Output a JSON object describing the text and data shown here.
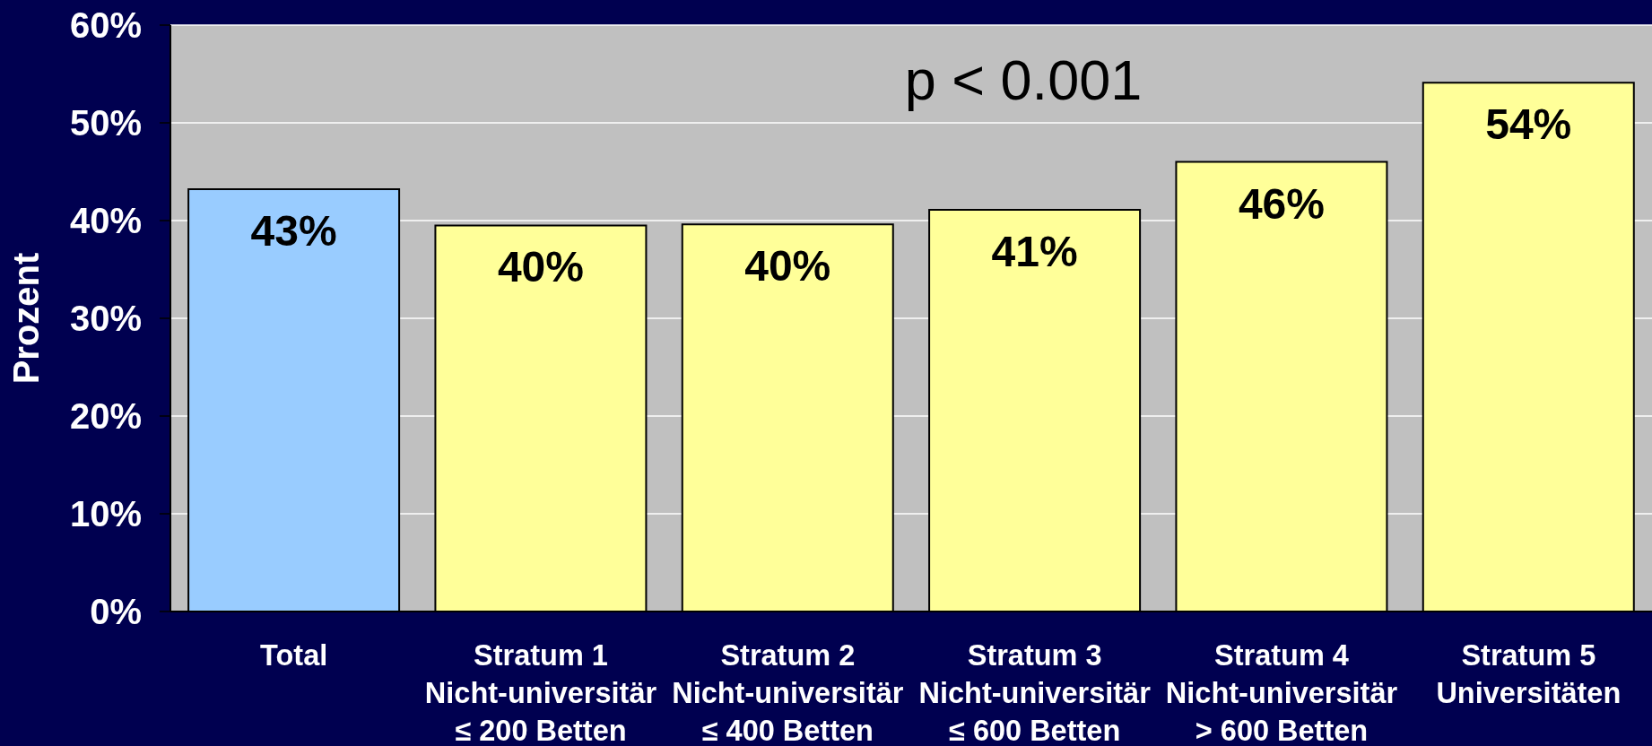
{
  "chart_data": {
    "type": "bar",
    "ylabel": "Prozent",
    "annotations": [
      "p < 0.001"
    ],
    "categories": [
      "Total",
      "Stratum 1\nNicht-universitär\n≤ 200 Betten",
      "Stratum 2\nNicht-universitär\n≤ 400 Betten",
      "Stratum 3\nNicht-universitär\n≤ 600 Betten",
      "Stratum 4\nNicht-universitär\n> 600 Betten",
      "Stratum 5\nUniversitäten"
    ],
    "values": [
      43.2,
      39.5,
      39.6,
      41.1,
      46.0,
      54.1
    ],
    "colors": [
      "#99ccff",
      "#ffff99",
      "#ffff99",
      "#ffff99",
      "#ffff99",
      "#ffff99"
    ],
    "value_labels": [
      "43%",
      "40%",
      "40%",
      "41%",
      "46%",
      "54%"
    ],
    "ylim": [
      0,
      60
    ],
    "yticks": [
      {
        "value": 0,
        "label": "0%"
      },
      {
        "value": 10,
        "label": "10%"
      },
      {
        "value": 20,
        "label": "20%"
      },
      {
        "value": 30,
        "label": "30%"
      },
      {
        "value": 40,
        "label": "40%"
      },
      {
        "value": 50,
        "label": "50%"
      },
      {
        "value": 60,
        "label": "60%"
      }
    ],
    "grid": "y"
  }
}
